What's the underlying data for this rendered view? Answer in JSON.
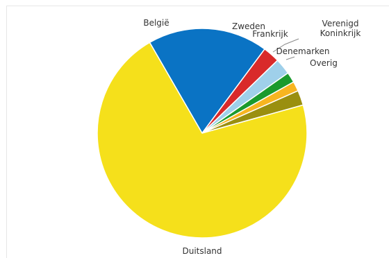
{
  "chart_data": {
    "type": "pie",
    "title": "",
    "slices": [
      {
        "label_lines": [
          "België"
        ],
        "value": 18.5,
        "color": "#0a73c4"
      },
      {
        "label_lines": [
          "Zweden"
        ],
        "value": 2.6,
        "color": "#d92a2a"
      },
      {
        "label_lines": [
          "Frankrijk"
        ],
        "value": 2.5,
        "color": "#9fd0ea"
      },
      {
        "label_lines": [
          "Verenigd",
          "Koninkrijk"
        ],
        "value": 1.6,
        "color": "#1a9a2d"
      },
      {
        "label_lines": [
          "Denemarken"
        ],
        "value": 1.5,
        "color": "#f7b520"
      },
      {
        "label_lines": [
          "Overig"
        ],
        "value": 2.3,
        "color": "#9a8f0f"
      },
      {
        "label_lines": [
          "Duitsland"
        ],
        "value": 71.0,
        "color": "#f5e01b"
      }
    ],
    "start_angle_deg": -30,
    "legend": "none"
  }
}
